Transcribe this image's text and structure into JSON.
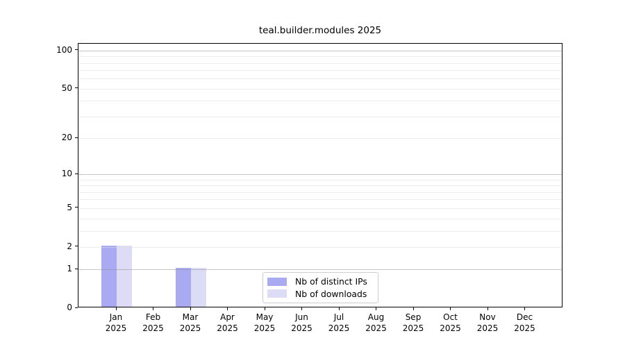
{
  "page": {
    "background": "#ffffff"
  },
  "chart_data": {
    "type": "bar",
    "title": "teal.builder.modules 2025",
    "xlabel": "",
    "ylabel": "",
    "y_scale": "log1p",
    "ylim": [
      0,
      113
    ],
    "grid": "on",
    "legend_position": "inside lower-center",
    "categories": [
      "Jan",
      "Feb",
      "Mar",
      "Apr",
      "May",
      "Jun",
      "Jul",
      "Aug",
      "Sep",
      "Oct",
      "Nov",
      "Dec"
    ],
    "category_year": "2025",
    "y_ticks": [
      0,
      1,
      2,
      5,
      10,
      20,
      50,
      100
    ],
    "major_gridlines": [
      1,
      10,
      100
    ],
    "minor_gridlines": [
      2,
      3,
      4,
      5,
      6,
      7,
      8,
      9,
      20,
      30,
      40,
      50,
      60,
      70,
      80,
      90
    ],
    "series": [
      {
        "name": "Nb of distinct IPs",
        "color": "#aaaaf2",
        "values": [
          2,
          0,
          1,
          0,
          0,
          0,
          0,
          0,
          0,
          0,
          0,
          0
        ]
      },
      {
        "name": "Nb of downloads",
        "color": "#dcdcf7",
        "values": [
          2,
          0,
          1,
          0,
          0,
          0,
          0,
          0,
          0,
          0,
          0,
          0
        ]
      }
    ],
    "colors": {
      "spine": "#000000",
      "major_grid": "#c8c8c8",
      "minor_grid": "#ececec",
      "text": "#000000",
      "legend_border": "#cccccc"
    }
  }
}
